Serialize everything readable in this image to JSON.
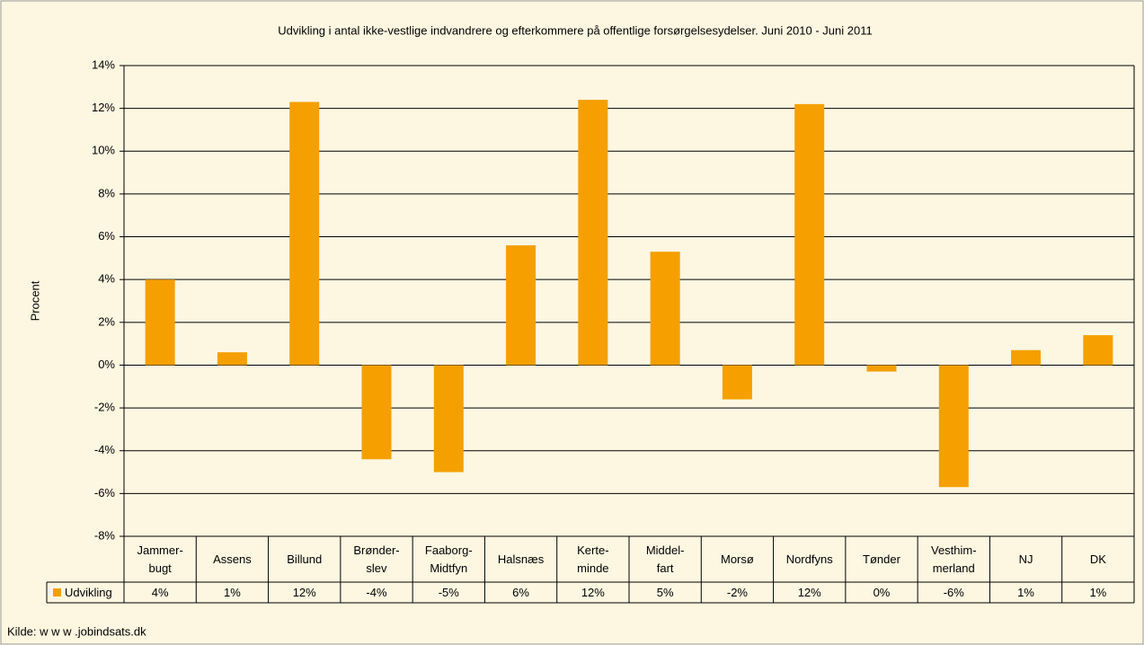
{
  "chart_data": {
    "type": "bar",
    "title": "Udvikling i antal ikke-vestlige indvandrere og efterkommere på offentlige forsørgelsesydelser. Juni 2010 - Juni 2011",
    "ylabel": "Procent",
    "source": "Kilde: w w w .jobindsats.dk",
    "categories": [
      "Jammer-\nbugt",
      "Assens",
      "Billund",
      "Brønder-\nslev",
      "Faaborg-\nMidtfyn",
      "Halsnæs",
      "Kerte-\nminde",
      "Middel-\nfart",
      "Morsø",
      "Nordfyns",
      "Tønder",
      "Vesthim-\nmerland",
      "NJ",
      "DK"
    ],
    "series": [
      {
        "name": "Udvikling",
        "color": "#f5a000",
        "values": [
          4.0,
          0.6,
          12.3,
          -4.4,
          -5.0,
          5.6,
          12.4,
          5.3,
          -1.6,
          12.2,
          -0.3,
          -5.7,
          0.7,
          1.4
        ],
        "value_labels": [
          "4%",
          "1%",
          "12%",
          "-4%",
          "-5%",
          "6%",
          "12%",
          "5%",
          "-2%",
          "12%",
          "0%",
          "-6%",
          "1%",
          "1%"
        ]
      }
    ],
    "ylim": [
      -8,
      14
    ],
    "yticks": [
      {
        "value": -8,
        "label": "-8%"
      },
      {
        "value": -6,
        "label": "-6%"
      },
      {
        "value": -4,
        "label": "-4%"
      },
      {
        "value": -2,
        "label": "-2%"
      },
      {
        "value": 0,
        "label": "0%"
      },
      {
        "value": 2,
        "label": "2%"
      },
      {
        "value": 4,
        "label": "4%"
      },
      {
        "value": 6,
        "label": "6%"
      },
      {
        "value": 8,
        "label": "8%"
      },
      {
        "value": 10,
        "label": "10%"
      },
      {
        "value": 12,
        "label": "12%"
      },
      {
        "value": 14,
        "label": "14%"
      }
    ],
    "grid": true
  }
}
